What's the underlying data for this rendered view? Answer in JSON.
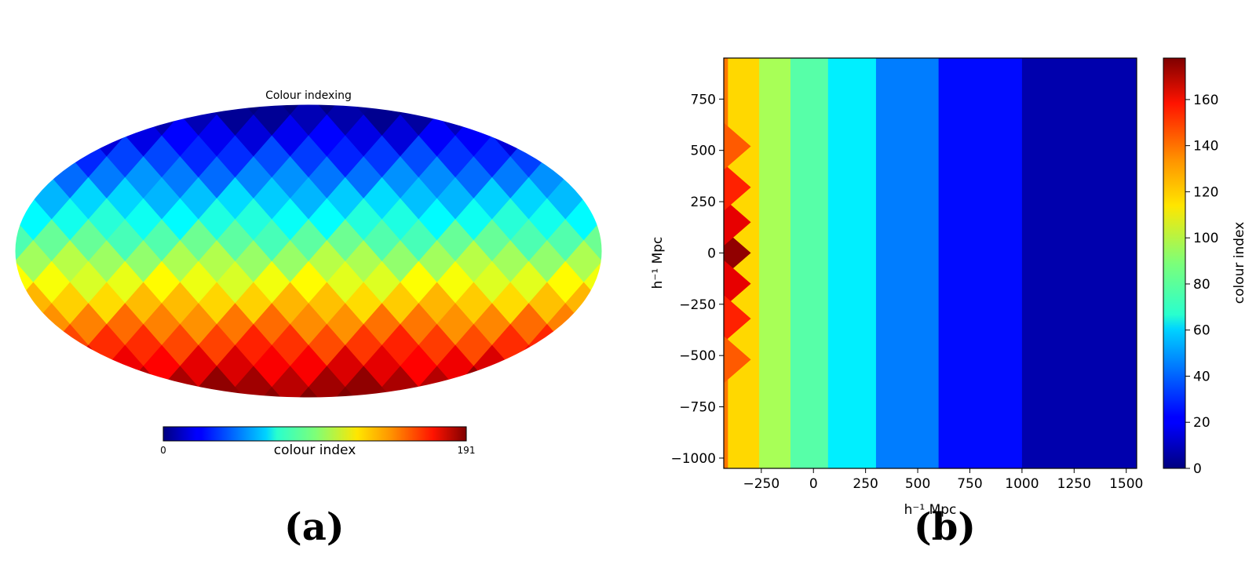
{
  "panels": {
    "a_label": "(a)",
    "b_label": "(b)"
  },
  "chart_data": [
    {
      "type": "heatmap",
      "projection": "mollweide",
      "title": "Colour indexing",
      "colormap": "jet",
      "grid": false,
      "colorbar": {
        "orientation": "horizontal",
        "placement": "bottom",
        "label": "colour index",
        "min": 0,
        "max": 191,
        "tick_labels": [
          "0",
          "191"
        ]
      },
      "nside": 4,
      "pixel_count": 192,
      "values_description_range": [
        0,
        191
      ]
    },
    {
      "type": "heatmap",
      "xlabel": "h⁻¹ Mpc",
      "ylabel": "h⁻¹ Mpc",
      "xlim": [
        -430,
        1550
      ],
      "ylim": [
        -1050,
        950
      ],
      "xticks": [
        -250,
        0,
        250,
        500,
        750,
        1000,
        1250,
        1500
      ],
      "xtick_labels": [
        "−250",
        "0",
        "250",
        "500",
        "750",
        "1000",
        "1250",
        "1500"
      ],
      "yticks": [
        750,
        500,
        250,
        0,
        -250,
        -500,
        -750,
        -1000
      ],
      "ytick_labels": [
        "750",
        "500",
        "250",
        "0",
        "−250",
        "−500",
        "−750",
        "−1000"
      ],
      "colormap": "jet",
      "grid": false,
      "colorbar": {
        "orientation": "vertical",
        "placement": "right",
        "label": "colour index",
        "min": 0,
        "max": 178,
        "ticks": [
          0,
          20,
          40,
          60,
          80,
          100,
          120,
          140,
          160
        ],
        "tick_labels": [
          "0",
          "20",
          "40",
          "60",
          "80",
          "100",
          "120",
          "140",
          "160"
        ]
      },
      "column_color_index_by_x": [
        {
          "x_from": -430,
          "x_to": -410,
          "value": 135
        },
        {
          "x_from": -410,
          "x_to": -260,
          "value": 118
        },
        {
          "x_from": -260,
          "x_to": -110,
          "value": 96
        },
        {
          "x_from": -110,
          "x_to": 70,
          "value": 82
        },
        {
          "x_from": 70,
          "x_to": 300,
          "value": 64
        },
        {
          "x_from": 300,
          "x_to": 600,
          "value": 44
        },
        {
          "x_from": 600,
          "x_to": 1000,
          "value": 24
        },
        {
          "x_from": 1000,
          "x_to": 1550,
          "value": 8
        }
      ]
    }
  ]
}
